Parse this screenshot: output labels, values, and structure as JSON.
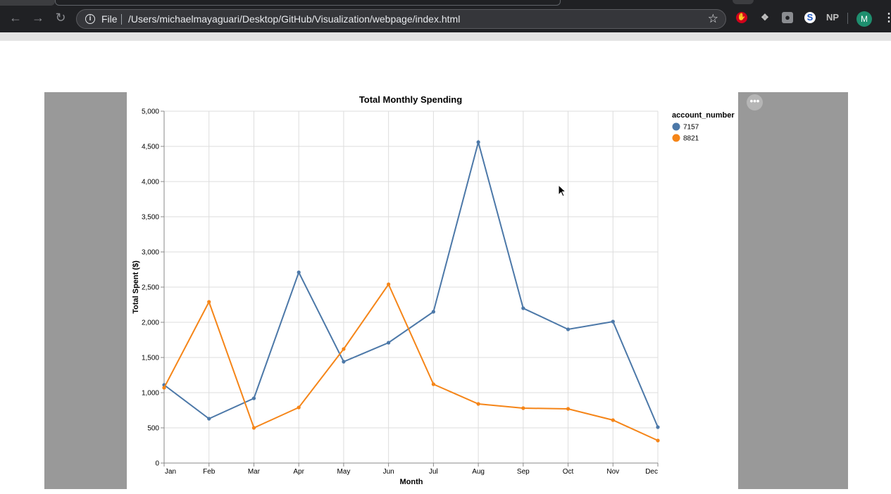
{
  "browser": {
    "file_label": "File",
    "url": "/Users/michaelmayaguari/Desktop/GitHub/Visualization/webpage/index.html",
    "avatar_initial": "M",
    "extension_np_label": "NP"
  },
  "chart_data": {
    "type": "line",
    "title": "Total Monthly Spending",
    "xlabel": "Month",
    "ylabel": "Total Spent ($)",
    "ylim": [
      0,
      5000
    ],
    "yticks": [
      "0",
      "500",
      "1,000",
      "1,500",
      "2,000",
      "2,500",
      "3,000",
      "3,500",
      "4,000",
      "4,500",
      "5,000"
    ],
    "categories": [
      "Jan",
      "Feb",
      "Mar",
      "Apr",
      "May",
      "Jun",
      "Jul",
      "Aug",
      "Sep",
      "Oct",
      "Nov",
      "Dec"
    ],
    "legend_title": "account_number",
    "legend_position": "top-right",
    "grid": true,
    "series": [
      {
        "name": "7157",
        "color": "#4c78a8",
        "values": [
          1110,
          630,
          920,
          2710,
          1440,
          1710,
          2150,
          4560,
          2200,
          1900,
          2010,
          510
        ]
      },
      {
        "name": "8821",
        "color": "#f58518",
        "values": [
          1070,
          2290,
          500,
          790,
          1620,
          2540,
          1120,
          840,
          780,
          770,
          610,
          320
        ]
      }
    ]
  }
}
